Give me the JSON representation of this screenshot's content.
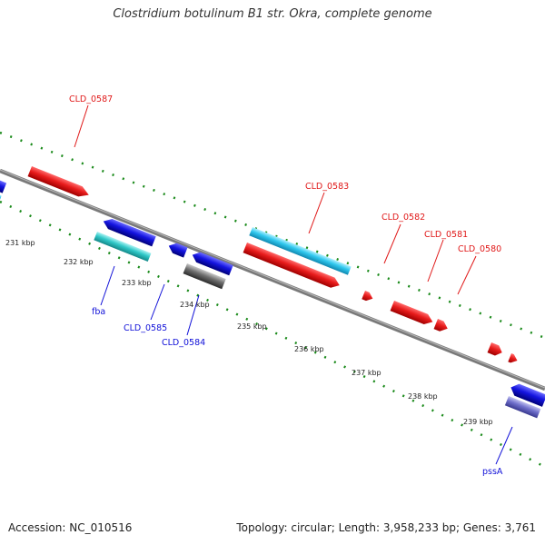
{
  "title": "Clostridium botulinum B1 str. Okra, complete genome",
  "footer": {
    "accession": "Accession: NC_010516",
    "summary": "Topology: circular; Length: 3,958,233 bp; Genes: 3,761"
  },
  "ticks": [
    "231 kbp",
    "232 kbp",
    "233 kbp",
    "234 kbp",
    "235 kbp",
    "236 kbp",
    "237 kbp",
    "238 kbp",
    "239 kbp"
  ],
  "genes": {
    "cld0587": "CLD_0587",
    "cld0583": "CLD_0583",
    "cld0582": "CLD_0582",
    "cld0581": "CLD_0581",
    "cld0580": "CLD_0580",
    "fba": "fba",
    "cld0585": "CLD_0585",
    "cld0584": "CLD_0584",
    "pssA": "pssA"
  },
  "colors": {
    "red": "#e01818",
    "blue": "#1010d8",
    "cyan": "#28c8e8",
    "teal": "#30c8c8",
    "gray": "#707070",
    "lavender": "#7070c8",
    "tick": "#1a8a1a",
    "backbone": "#808080"
  }
}
